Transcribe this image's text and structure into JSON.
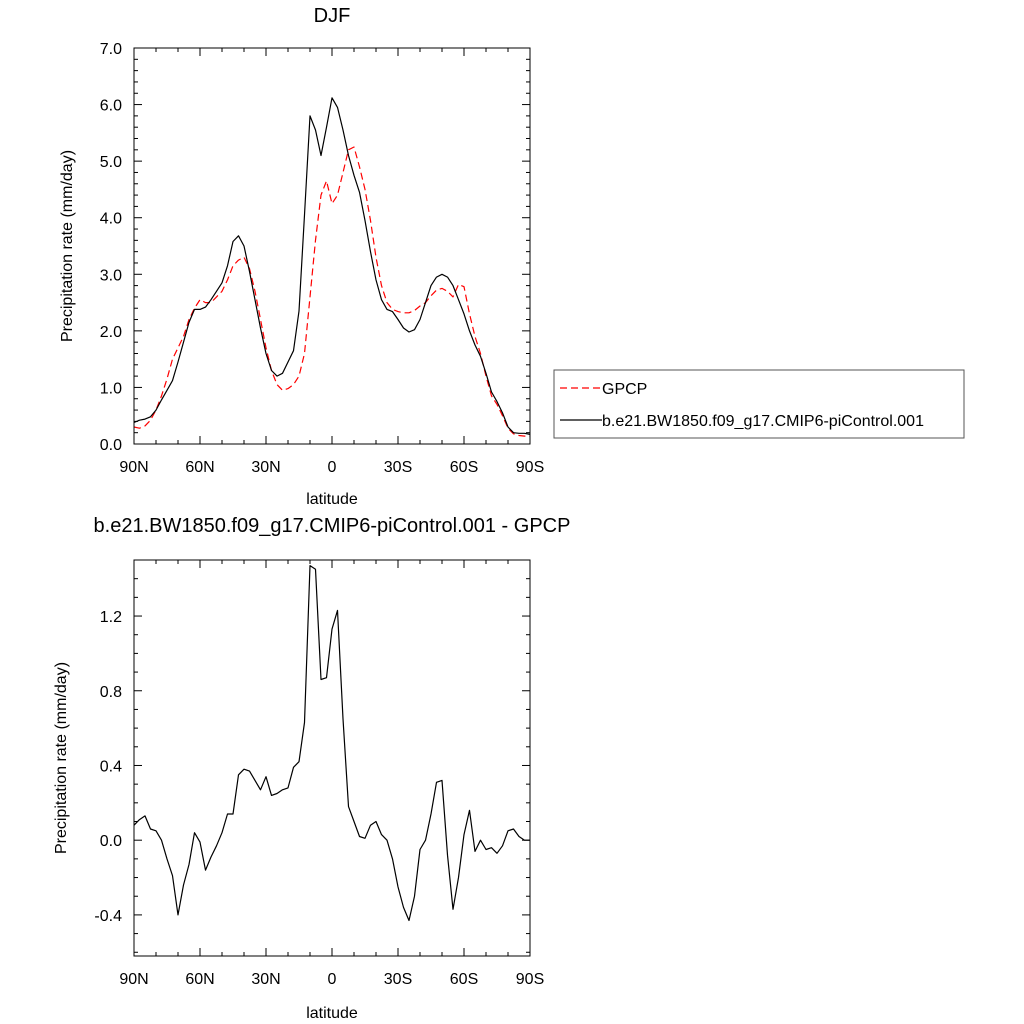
{
  "chart_data": [
    {
      "type": "line",
      "title": "DJF",
      "xlabel": "latitude",
      "ylabel": "Precipitation rate (mm/day)",
      "xlim": [
        90,
        -90
      ],
      "ylim": [
        0,
        7
      ],
      "xticks": [
        90,
        60,
        30,
        0,
        -30,
        -60,
        -90
      ],
      "xtick_labels": [
        "90N",
        "60N",
        "30N",
        "0",
        "30S",
        "60S",
        "90S"
      ],
      "yticks": [
        0,
        1,
        2,
        3,
        4,
        5,
        6,
        7
      ],
      "ytick_labels": [
        "0.0",
        "1.0",
        "2.0",
        "3.0",
        "4.0",
        "5.0",
        "6.0",
        "7.0"
      ],
      "legend_position": "right",
      "series": [
        {
          "name": "GPCP",
          "color": "#ff0000",
          "style": "dashed",
          "x": [
            90,
            87.5,
            85,
            82.5,
            80,
            77.5,
            75,
            72.5,
            70,
            67.5,
            65,
            62.5,
            60,
            57.5,
            55,
            52.5,
            50,
            47.5,
            45,
            42.5,
            40,
            37.5,
            35,
            32.5,
            30,
            27.5,
            25,
            22.5,
            20,
            17.5,
            15,
            12.5,
            10,
            7.5,
            5,
            2.5,
            0,
            -2.5,
            -5,
            -7.5,
            -10,
            -12.5,
            -15,
            -17.5,
            -20,
            -22.5,
            -25,
            -27.5,
            -30,
            -32.5,
            -35,
            -37.5,
            -40,
            -42.5,
            -45,
            -47.5,
            -50,
            -52.5,
            -55,
            -57.5,
            -60,
            -62.5,
            -65,
            -67.5,
            -70,
            -72.5,
            -75,
            -77.5,
            -80,
            -82.5,
            -85,
            -87.5,
            -90
          ],
          "y": [
            0.3,
            0.28,
            0.32,
            0.42,
            0.6,
            0.85,
            1.15,
            1.5,
            1.7,
            1.9,
            2.2,
            2.4,
            2.55,
            2.5,
            2.5,
            2.6,
            2.7,
            2.9,
            3.15,
            3.25,
            3.3,
            3.1,
            2.7,
            2.2,
            1.7,
            1.3,
            1.05,
            0.95,
            0.98,
            1.05,
            1.2,
            1.6,
            2.6,
            3.6,
            4.4,
            4.65,
            4.25,
            4.4,
            4.8,
            5.2,
            5.25,
            4.9,
            4.5,
            3.95,
            3.3,
            2.8,
            2.5,
            2.38,
            2.34,
            2.32,
            2.32,
            2.36,
            2.44,
            2.5,
            2.62,
            2.72,
            2.75,
            2.7,
            2.6,
            2.82,
            2.78,
            2.3,
            1.9,
            1.6,
            1.2,
            0.85,
            0.7,
            0.5,
            0.28,
            0.18,
            0.15,
            0.14,
            0.14
          ]
        },
        {
          "name": "b.e21.BW1850.f09_g17.CMIP6-piControl.001",
          "color": "#000000",
          "style": "solid",
          "x": [
            90,
            87.5,
            85,
            82.5,
            80,
            77.5,
            75,
            72.5,
            70,
            67.5,
            65,
            62.5,
            60,
            57.5,
            55,
            52.5,
            50,
            47.5,
            45,
            42.5,
            40,
            37.5,
            35,
            32.5,
            30,
            27.5,
            25,
            22.5,
            20,
            17.5,
            15,
            12.5,
            10,
            7.5,
            5,
            2.5,
            0,
            -2.5,
            -5,
            -7.5,
            -10,
            -12.5,
            -15,
            -17.5,
            -20,
            -22.5,
            -25,
            -27.5,
            -30,
            -32.5,
            -35,
            -37.5,
            -40,
            -42.5,
            -45,
            -47.5,
            -50,
            -52.5,
            -55,
            -57.5,
            -60,
            -62.5,
            -65,
            -67.5,
            -70,
            -72.5,
            -75,
            -77.5,
            -80,
            -82.5,
            -85,
            -87.5,
            -90
          ],
          "y": [
            0.38,
            0.42,
            0.44,
            0.48,
            0.6,
            0.78,
            0.95,
            1.12,
            1.45,
            1.8,
            2.15,
            2.38,
            2.38,
            2.42,
            2.55,
            2.7,
            2.85,
            3.15,
            3.58,
            3.68,
            3.5,
            3.05,
            2.55,
            2.05,
            1.6,
            1.3,
            1.2,
            1.25,
            1.45,
            1.65,
            2.35,
            4.05,
            5.8,
            5.55,
            5.1,
            5.6,
            6.12,
            5.95,
            5.55,
            5.1,
            4.75,
            4.45,
            3.95,
            3.4,
            2.9,
            2.55,
            2.38,
            2.34,
            2.2,
            2.05,
            1.98,
            2.02,
            2.2,
            2.5,
            2.8,
            2.95,
            3.0,
            2.95,
            2.8,
            2.55,
            2.3,
            2.0,
            1.75,
            1.55,
            1.25,
            0.92,
            0.75,
            0.55,
            0.3,
            0.2,
            0.19,
            0.19,
            0.17
          ]
        }
      ]
    },
    {
      "type": "line",
      "title": "b.e21.BW1850.f09_g17.CMIP6-piControl.001 - GPCP",
      "xlabel": "latitude",
      "ylabel": "Precipitation rate (mm/day)",
      "xlim": [
        90,
        -90
      ],
      "ylim": [
        -0.62,
        1.5
      ],
      "xticks": [
        90,
        60,
        30,
        0,
        -30,
        -60,
        -90
      ],
      "xtick_labels": [
        "90N",
        "60N",
        "30N",
        "0",
        "30S",
        "60S",
        "90S"
      ],
      "yticks": [
        -0.4,
        0.0,
        0.4,
        0.8,
        1.2
      ],
      "ytick_labels": [
        "-0.4",
        "0.0",
        "0.4",
        "0.8",
        "1.2"
      ],
      "series": [
        {
          "color": "#000000",
          "style": "solid",
          "x": [
            90,
            87.5,
            85,
            82.5,
            80,
            77.5,
            75,
            72.5,
            70,
            67.5,
            65,
            62.5,
            60,
            57.5,
            55,
            52.5,
            50,
            47.5,
            45,
            42.5,
            40,
            37.5,
            35,
            32.5,
            30,
            27.5,
            25,
            22.5,
            20,
            17.5,
            15,
            12.5,
            10,
            7.5,
            5,
            2.5,
            0,
            -2.5,
            -5,
            -7.5,
            -10,
            -12.5,
            -15,
            -17.5,
            -20,
            -22.5,
            -25,
            -27.5,
            -30,
            -32.5,
            -35,
            -37.5,
            -40,
            -42.5,
            -45,
            -47.5,
            -50,
            -52.5,
            -55,
            -57.5,
            -60,
            -62.5,
            -65,
            -67.5,
            -70,
            -72.5,
            -75,
            -77.5,
            -80,
            -82.5,
            -85,
            -87.5,
            -90
          ],
          "y": [
            0.08,
            0.11,
            0.13,
            0.06,
            0.05,
            0.0,
            -0.1,
            -0.19,
            -0.4,
            -0.24,
            -0.13,
            0.04,
            -0.01,
            -0.16,
            -0.09,
            -0.03,
            0.04,
            0.14,
            0.14,
            0.35,
            0.38,
            0.37,
            0.32,
            0.27,
            0.34,
            0.24,
            0.25,
            0.27,
            0.28,
            0.39,
            0.42,
            0.63,
            1.47,
            1.45,
            0.86,
            0.87,
            1.13,
            1.23,
            0.65,
            0.18,
            0.1,
            0.02,
            0.01,
            0.08,
            0.1,
            0.03,
            0.0,
            -0.1,
            -0.25,
            -0.36,
            -0.43,
            -0.3,
            -0.05,
            0.0,
            0.14,
            0.31,
            0.32,
            -0.08,
            -0.37,
            -0.2,
            0.03,
            0.16,
            -0.06,
            0.0,
            -0.05,
            -0.04,
            -0.07,
            -0.03,
            0.05,
            0.06,
            0.02,
            0.0,
            0.0
          ]
        }
      ]
    }
  ]
}
